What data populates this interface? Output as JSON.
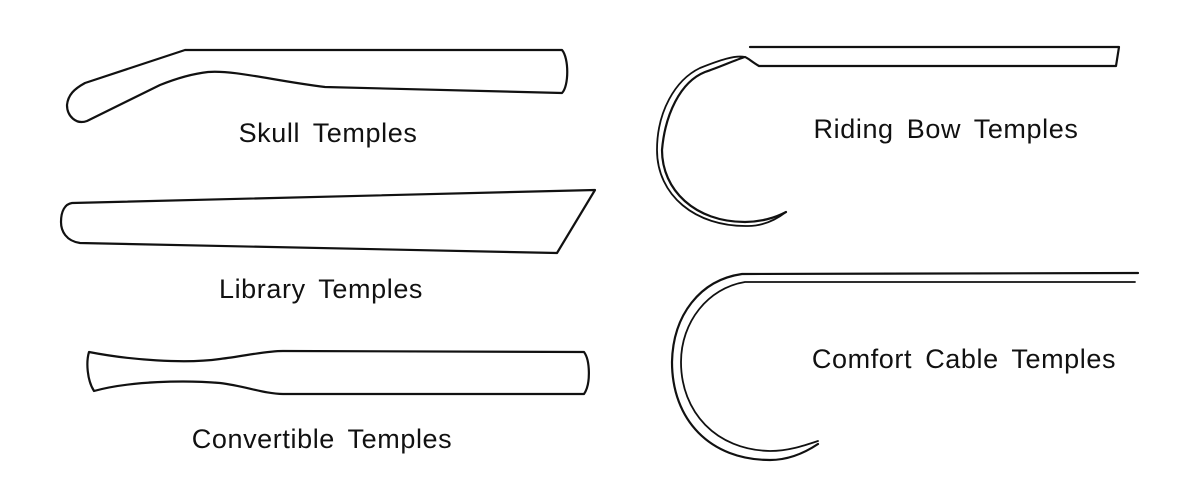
{
  "labels": {
    "skull": "Skull Temples",
    "library": "Library Temples",
    "convertible": "Convertible Temples",
    "riding_bow": "Riding Bow Temples",
    "comfort_cable": "Comfort Cable Temples"
  }
}
